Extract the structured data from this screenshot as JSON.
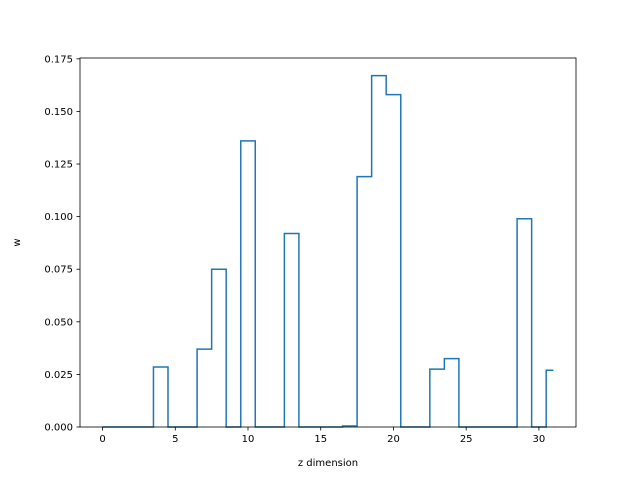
{
  "chart_data": {
    "type": "step",
    "title": "",
    "xlabel": "z dimension",
    "ylabel": "w",
    "xlim": [
      -1.55,
      32.55
    ],
    "ylim": [
      0,
      0.1754
    ],
    "x_ticks": [
      0,
      5,
      10,
      15,
      20,
      25,
      30
    ],
    "x_tick_labels": [
      "0",
      "5",
      "10",
      "15",
      "20",
      "25",
      "30"
    ],
    "y_ticks": [
      0,
      0.025,
      0.05,
      0.075,
      0.1,
      0.125,
      0.15,
      0.175
    ],
    "y_tick_labels": [
      "0.000",
      "0.025",
      "0.050",
      "0.075",
      "0.100",
      "0.125",
      "0.150",
      "0.175"
    ],
    "grid": false,
    "step_where": "mid",
    "series": [
      {
        "color": "#1f77b4",
        "x": [
          0,
          1,
          2,
          3,
          4,
          5,
          6,
          7,
          8,
          9,
          10,
          11,
          12,
          13,
          14,
          15,
          16,
          17,
          18,
          19,
          20,
          21,
          22,
          23,
          24,
          25,
          26,
          27,
          28,
          29,
          30,
          31
        ],
        "values": [
          0,
          0,
          0,
          0,
          0.0285,
          0,
          0,
          0.037,
          0.075,
          0,
          0.136,
          0,
          0,
          0.092,
          0,
          0,
          0,
          0.0005,
          0.119,
          0.167,
          0.158,
          0,
          0,
          0.0275,
          0.0325,
          0,
          0,
          0,
          0,
          0.099,
          0,
          0.027
        ]
      }
    ]
  }
}
